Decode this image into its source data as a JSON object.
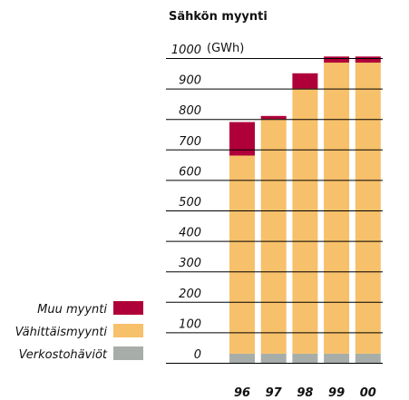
{
  "chart_data": {
    "type": "stacked-bar",
    "title": "Sähkön myynti",
    "y_unit": "(GWh)",
    "categories": [
      "96",
      "97",
      "98",
      "99",
      "00"
    ],
    "series": [
      {
        "name": "Verkostohäviöt",
        "color": "#a7aea9",
        "values": [
          30,
          30,
          30,
          30,
          30
        ]
      },
      {
        "name": "Vähittäismyynti",
        "color": "#f7c06a",
        "values": [
          650,
          770,
          870,
          955,
          955
        ]
      },
      {
        "name": "Muu myynti",
        "color": "#b0003a",
        "values": [
          110,
          10,
          50,
          20,
          20
        ]
      }
    ],
    "ylim": [
      0,
      1000
    ],
    "yticks": [
      0,
      100,
      200,
      300,
      400,
      500,
      600,
      700,
      800,
      900,
      1000
    ],
    "grid": true
  }
}
